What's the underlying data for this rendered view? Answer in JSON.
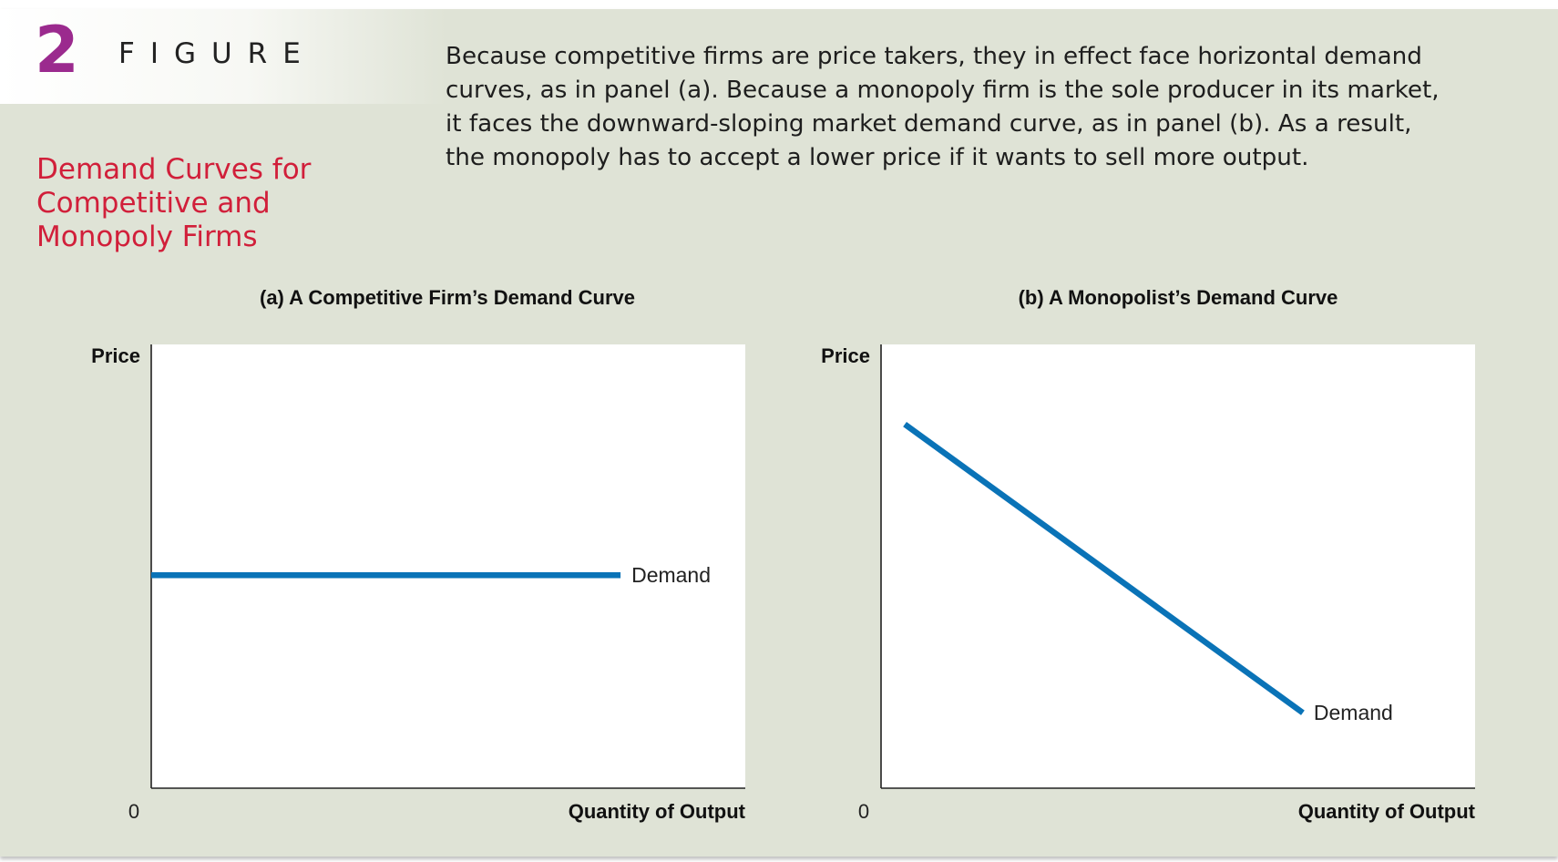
{
  "figure": {
    "number": "2",
    "label": "FIGURE",
    "title": "Demand Curves for Competitive and Monopoly Firms",
    "caption_lines": [
      "Because competitive firms are price takers, they in effect face horizontal demand",
      "curves, as in panel (a). Because a monopoly firm is the sole producer in its market,",
      "it faces the downward-sloping market demand curve, as in panel (b). As a result,",
      "the monopoly has to accept a lower price if it wants to sell more output."
    ]
  },
  "colors": {
    "accent_number": "#9b2a8e",
    "title": "#d11f3a",
    "demand_line": "#0a73b7",
    "background": "#dfe3d6",
    "plot_area": "#ffffff"
  },
  "chart_data": [
    {
      "type": "line",
      "title": "(a) A Competitive Firm’s Demand Curve",
      "ylabel": "Price",
      "xlabel": "Quantity of Output",
      "origin_label": "0",
      "xlim": [
        0,
        100
      ],
      "ylim": [
        0,
        100
      ],
      "grid": false,
      "series": [
        {
          "name": "Demand",
          "x": [
            0,
            79
          ],
          "y": [
            48,
            48
          ]
        }
      ]
    },
    {
      "type": "line",
      "title": "(b) A Monopolist’s Demand Curve",
      "ylabel": "Price",
      "xlabel": "Quantity of Output",
      "origin_label": "0",
      "xlim": [
        0,
        100
      ],
      "ylim": [
        0,
        100
      ],
      "grid": false,
      "series": [
        {
          "name": "Demand",
          "x": [
            4,
            71
          ],
          "y": [
            82,
            17
          ]
        }
      ]
    }
  ]
}
